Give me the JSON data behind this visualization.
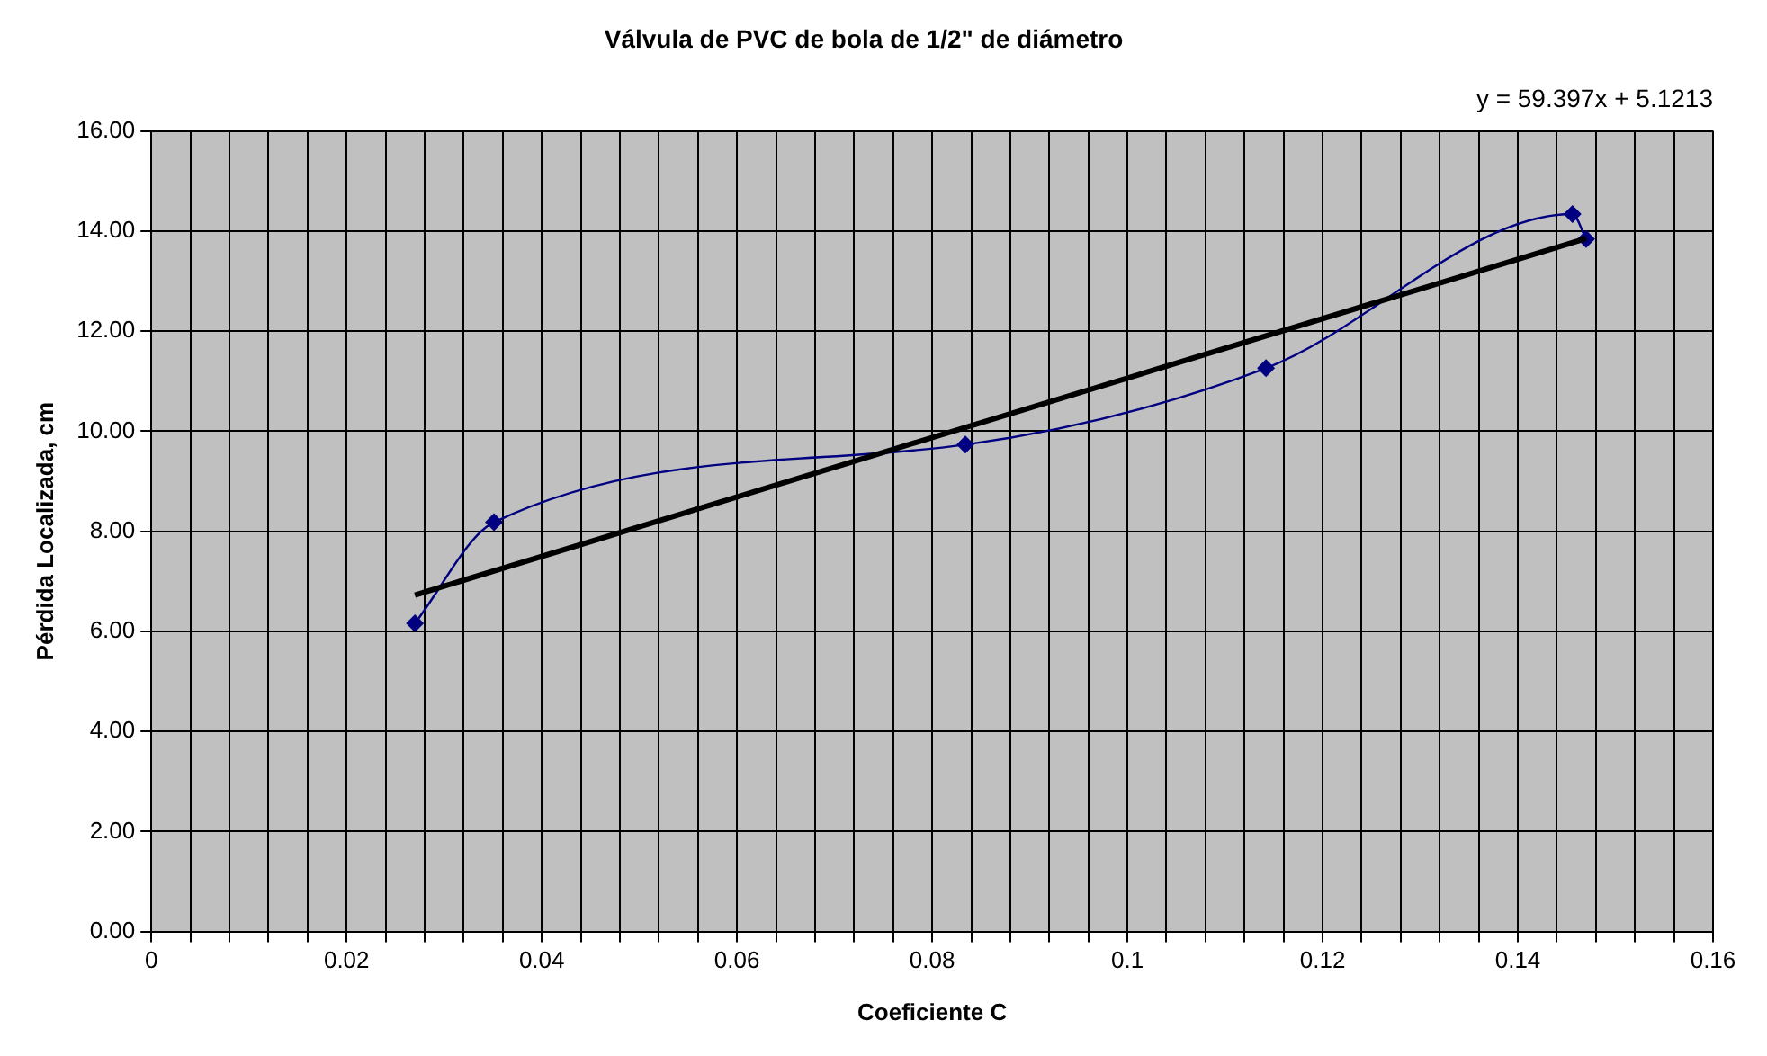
{
  "chart_data": {
    "type": "line",
    "title": "Válvula de PVC de bola de 1/2\" de diámetro",
    "xlabel": "Coeficiente C",
    "ylabel": "Pérdida Localizada, cm",
    "annotations": [
      "y = 59.397x + 5.1213"
    ],
    "series": [
      {
        "color": "#000080",
        "x": [
          0.027,
          0.0351,
          0.0834,
          0.1142,
          0.1456,
          0.147
        ],
        "values": [
          6.16,
          8.18,
          9.73,
          11.26,
          14.34,
          13.84
        ],
        "marker": "diamond"
      },
      {
        "color": "#000000",
        "x": [
          0.027,
          0.147
        ],
        "values": [
          6.725,
          13.852
        ],
        "marker": "none"
      }
    ],
    "xlim": [
      0,
      0.16
    ],
    "xticks": [
      0,
      {
        "value": 0.004,
        "label": null
      },
      {
        "value": 0.008,
        "label": null
      },
      {
        "value": 0.012,
        "label": null
      },
      {
        "value": 0.016,
        "label": null
      },
      0.02,
      {
        "value": 0.024,
        "label": null
      },
      {
        "value": 0.028,
        "label": null
      },
      {
        "value": 0.032,
        "label": null
      },
      {
        "value": 0.036,
        "label": null
      },
      0.04,
      {
        "value": 0.044,
        "label": null
      },
      {
        "value": 0.048,
        "label": null
      },
      {
        "value": 0.052,
        "label": null
      },
      {
        "value": 0.056,
        "label": null
      },
      0.06,
      {
        "value": 0.064,
        "label": null
      },
      {
        "value": 0.068,
        "label": null
      },
      {
        "value": 0.072,
        "label": null
      },
      {
        "value": 0.076,
        "label": null
      },
      0.08,
      {
        "value": 0.084,
        "label": null
      },
      {
        "value": 0.088,
        "label": null
      },
      {
        "value": 0.092,
        "label": null
      },
      {
        "value": 0.096,
        "label": null
      },
      0.1,
      {
        "value": 0.104,
        "label": null
      },
      {
        "value": 0.108,
        "label": null
      },
      {
        "value": 0.112,
        "label": null
      },
      {
        "value": 0.116,
        "label": null
      },
      0.12,
      {
        "value": 0.124,
        "label": null
      },
      {
        "value": 0.128,
        "label": null
      },
      {
        "value": 0.132,
        "label": null
      },
      {
        "value": 0.136,
        "label": null
      },
      0.14,
      {
        "value": 0.144,
        "label": null
      },
      {
        "value": 0.148,
        "label": null
      },
      {
        "value": 0.152,
        "label": null
      },
      {
        "value": 0.156,
        "label": null
      },
      0.16
    ],
    "ylim": [
      0,
      16
    ],
    "yticks": [
      {
        "value": 0,
        "label": "0.00"
      },
      {
        "value": 2,
        "label": "2.00"
      },
      {
        "value": 4,
        "label": "4.00"
      },
      {
        "value": 6,
        "label": "6.00"
      },
      {
        "value": 8,
        "label": "8.00"
      },
      {
        "value": 10,
        "label": "10.00"
      },
      {
        "value": 12,
        "label": "12.00"
      },
      {
        "value": 14,
        "label": "14.00"
      },
      {
        "value": 16,
        "label": "16.00"
      }
    ],
    "grid": true,
    "legend": false,
    "line_style": "solid"
  }
}
